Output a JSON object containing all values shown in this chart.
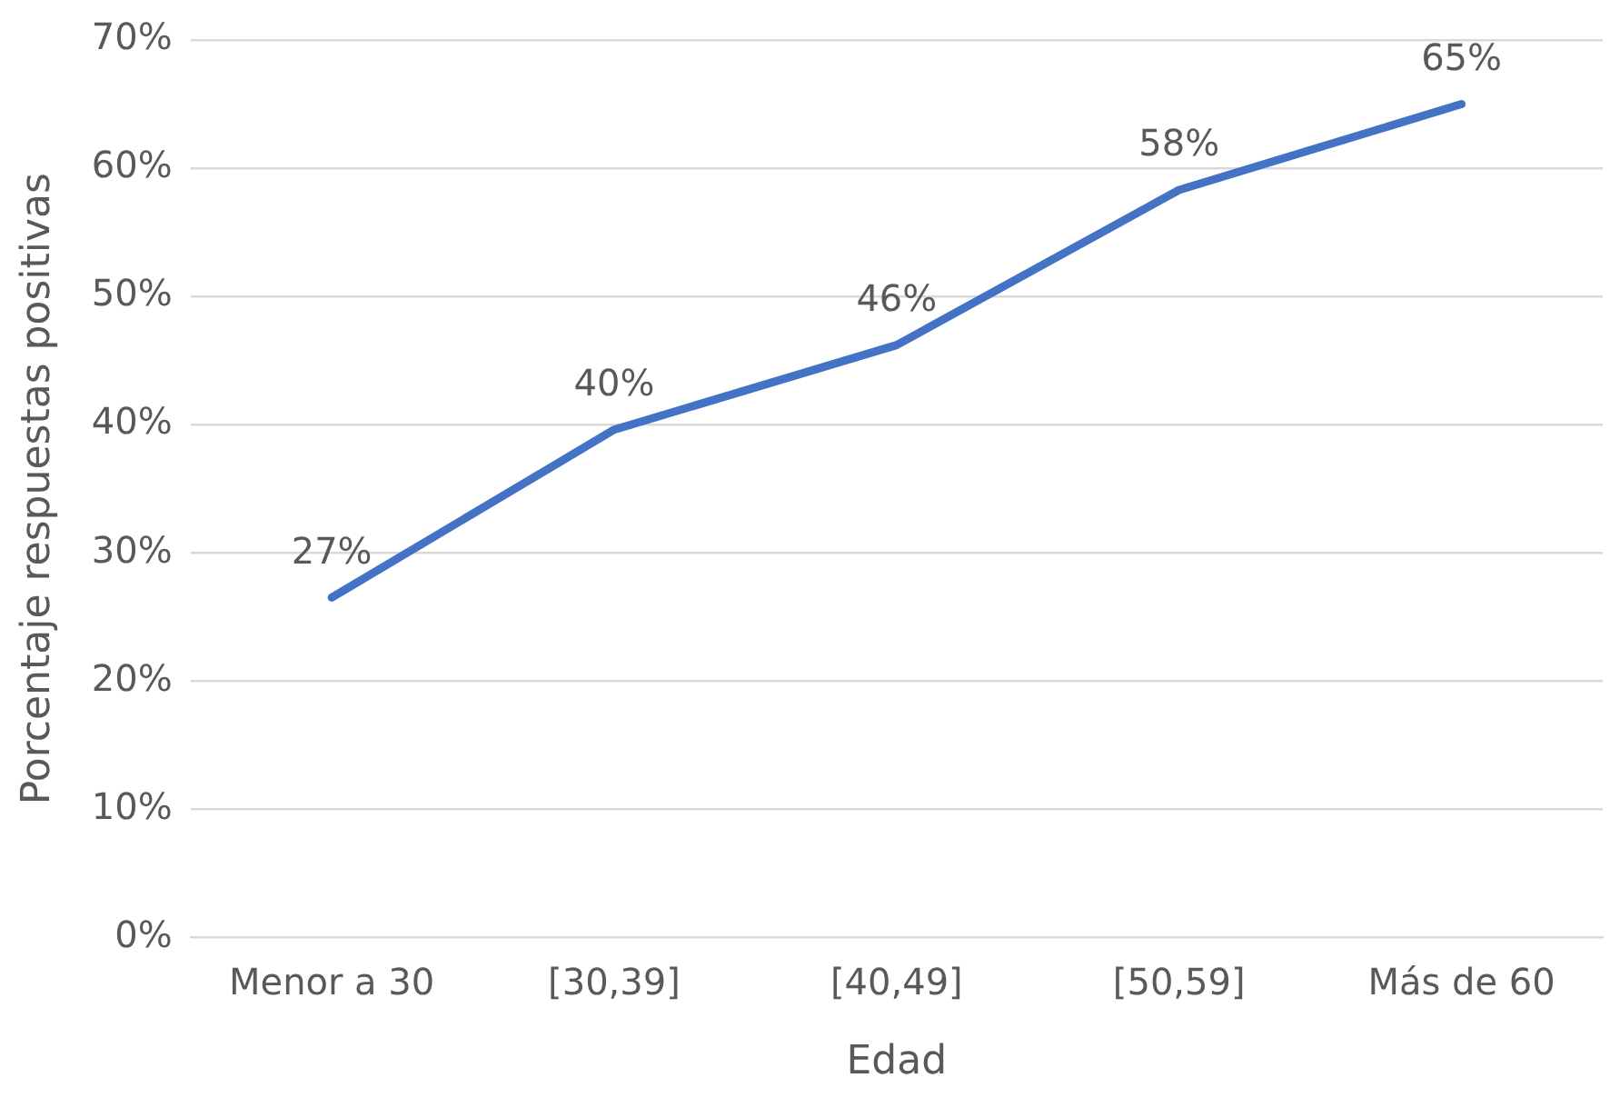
{
  "chart_data": {
    "type": "line",
    "xlabel": "Edad",
    "ylabel": "Porcentaje respuestas positivas",
    "categories": [
      "Menor a 30",
      "[30,39]",
      "[40,49]",
      "[50,59]",
      "Más de 60"
    ],
    "series": [
      {
        "color": "#4472c4",
        "values": [
          26.5,
          39.6,
          46.2,
          58.3,
          65
        ],
        "value_labels": [
          "27%",
          "40%",
          "46%",
          "58%",
          "65%"
        ]
      }
    ],
    "ylim": [
      0,
      70
    ],
    "yticks": [
      {
        "value": 0,
        "label": "0%"
      },
      {
        "value": 10,
        "label": "10%"
      },
      {
        "value": 20,
        "label": "20%"
      },
      {
        "value": 30,
        "label": "30%"
      },
      {
        "value": 40,
        "label": "40%"
      },
      {
        "value": 50,
        "label": "50%"
      },
      {
        "value": 60,
        "label": "60%"
      },
      {
        "value": 70,
        "label": "70%"
      }
    ],
    "grid": "y",
    "legend": false,
    "marker": "none",
    "line_style": "solid"
  }
}
